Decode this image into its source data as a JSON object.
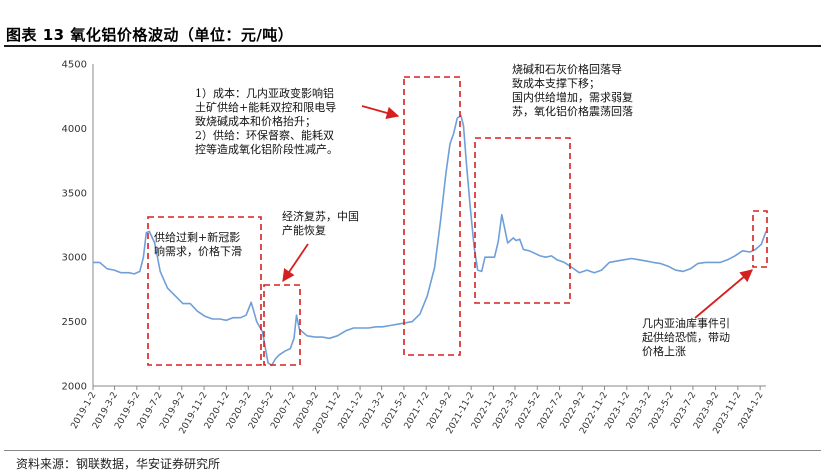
{
  "title": "图表 13 氧化铝价格波动（单位：元/吨）",
  "source": "资料来源：钢联数据，华安证券研究所",
  "chart_data": {
    "type": "line",
    "ylim": [
      2000,
      4500
    ],
    "yticks": [
      2000,
      2500,
      3000,
      3500,
      4000,
      4500
    ],
    "x_start": "2019-1-2",
    "x_end": "2024-1-18",
    "xticks": [
      "2019-1-2",
      "2019-3-2",
      "2019-5-2",
      "2019-7-2",
      "2019-9-2",
      "2019-11-2",
      "2020-1-2",
      "2020-3-2",
      "2020-5-2",
      "2020-7-2",
      "2020-9-2",
      "2020-11-2",
      "2021-1-2",
      "2021-3-2",
      "2021-5-2",
      "2021-7-2",
      "2021-9-2",
      "2021-11-2",
      "2022-1-2",
      "2022-3-2",
      "2022-5-2",
      "2022-7-2",
      "2022-9-2",
      "2022-11-2",
      "2023-1-2",
      "2023-3-2",
      "2023-5-2",
      "2023-7-2",
      "2023-9-2",
      "2023-11-2",
      "2024-1-2"
    ],
    "line_color": "#6f9fd8",
    "grid": false,
    "series": [
      {
        "x": [
          "2019-1-2",
          "2019-1-20",
          "2019-2-10",
          "2019-3-1",
          "2019-3-20",
          "2019-4-10",
          "2019-4-25",
          "2019-5-10",
          "2019-5-20",
          "2019-5-28",
          "2019-6-5",
          "2019-6-20",
          "2019-7-5",
          "2019-7-25",
          "2019-8-15",
          "2019-9-5",
          "2019-9-25",
          "2019-10-15",
          "2019-11-5",
          "2019-11-25",
          "2019-12-15",
          "2020-1-2",
          "2020-1-20",
          "2020-2-10",
          "2020-2-25",
          "2020-3-10",
          "2020-3-25",
          "2020-4-10",
          "2020-4-25",
          "2020-5-5",
          "2020-5-15",
          "2020-5-25",
          "2020-6-10",
          "2020-6-25",
          "2020-7-5",
          "2020-7-12",
          "2020-7-20",
          "2020-8-10",
          "2020-9-1",
          "2020-9-20",
          "2020-10-10",
          "2020-11-1",
          "2020-11-25",
          "2020-12-15",
          "2021-1-5",
          "2021-1-25",
          "2021-2-15",
          "2021-3-5",
          "2021-3-25",
          "2021-4-15",
          "2021-5-5",
          "2021-5-25",
          "2021-6-15",
          "2021-7-5",
          "2021-7-25",
          "2021-8-10",
          "2021-8-25",
          "2021-9-5",
          "2021-9-15",
          "2021-9-25",
          "2021-10-5",
          "2021-10-12",
          "2021-10-20",
          "2021-10-30",
          "2021-11-10",
          "2021-11-20",
          "2021-12-1",
          "2021-12-10",
          "2021-12-20",
          "2022-1-5",
          "2022-1-15",
          "2022-1-25",
          "2022-2-10",
          "2022-2-25",
          "2022-3-5",
          "2022-3-15",
          "2022-3-25",
          "2022-4-10",
          "2022-4-25",
          "2022-5-10",
          "2022-5-25",
          "2022-6-10",
          "2022-6-25",
          "2022-7-15",
          "2022-8-5",
          "2022-8-25",
          "2022-9-15",
          "2022-10-5",
          "2022-10-25",
          "2022-11-15",
          "2022-12-5",
          "2022-12-25",
          "2023-1-15",
          "2023-2-5",
          "2023-2-25",
          "2023-3-15",
          "2023-4-5",
          "2023-4-25",
          "2023-5-15",
          "2023-6-5",
          "2023-6-25",
          "2023-7-15",
          "2023-8-5",
          "2023-8-25",
          "2023-9-15",
          "2023-10-5",
          "2023-10-25",
          "2023-11-15",
          "2023-12-5",
          "2023-12-20",
          "2024-1-5",
          "2024-1-18"
        ],
        "y": [
          2960,
          2960,
          2910,
          2900,
          2880,
          2880,
          2870,
          2890,
          3000,
          3190,
          3200,
          3110,
          2890,
          2760,
          2700,
          2640,
          2640,
          2580,
          2540,
          2520,
          2520,
          2510,
          2530,
          2530,
          2550,
          2650,
          2500,
          2420,
          2180,
          2160,
          2210,
          2240,
          2270,
          2290,
          2370,
          2550,
          2440,
          2390,
          2380,
          2380,
          2370,
          2390,
          2430,
          2450,
          2450,
          2450,
          2460,
          2460,
          2470,
          2480,
          2490,
          2500,
          2560,
          2700,
          2920,
          3280,
          3650,
          3880,
          3960,
          4080,
          4100,
          4020,
          3730,
          3400,
          3080,
          2900,
          2890,
          3000,
          3000,
          3000,
          3120,
          3330,
          3110,
          3150,
          3130,
          3140,
          3060,
          3050,
          3030,
          3010,
          3000,
          3010,
          2980,
          2960,
          2920,
          2880,
          2900,
          2880,
          2900,
          2960,
          2970,
          2980,
          2990,
          2980,
          2970,
          2960,
          2950,
          2930,
          2900,
          2890,
          2910,
          2950,
          2960,
          2960,
          2960,
          2980,
          3010,
          3050,
          3040,
          3060,
          3100,
          3200
        ]
      }
    ],
    "annotations": [
      {
        "lines": [
          "1）成本：几内亚政变影响铝",
          "土矿供给+能耗双控和限电导",
          "致烧碱成本和价格抬升；",
          "2）供给：环保督察、能耗双",
          "控等造成氧化铝阶段性减产。"
        ]
      },
      {
        "lines": [
          "烧碱和石灰价格回落导",
          "致成本支撑下移；",
          "国内供给增加，需求弱复",
          "苏，氧化铝价格震荡回落"
        ]
      },
      {
        "lines": [
          "供给过剩+新冠影",
          "响需求，价格下滑"
        ]
      },
      {
        "lines": [
          "经济复苏，中国",
          "产能恢复"
        ]
      },
      {
        "lines": [
          "几内亚油库事件引",
          "起供给恐慌，带动",
          "价格上涨"
        ]
      }
    ]
  }
}
